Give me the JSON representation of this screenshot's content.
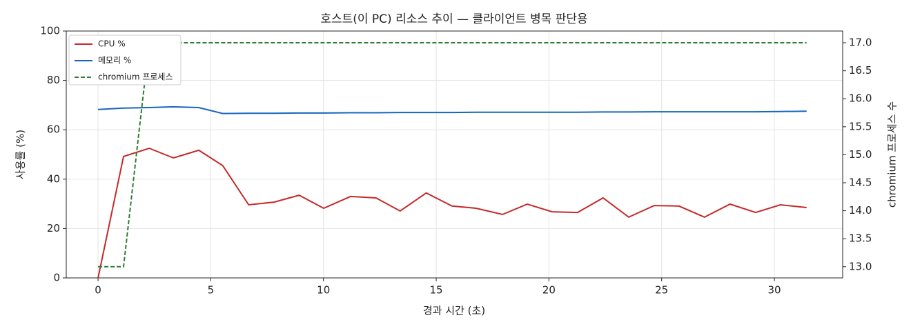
{
  "chart_data": {
    "type": "line",
    "title": "호스트(이 PC) 리소스 추이 — 클라이언트 병목 판단용",
    "x_label": "경과 시간 (초)",
    "y_label": "사용률 (%)",
    "y2_label": "chromium 프로세스 수",
    "x": [
      0,
      1.13,
      2.27,
      3.34,
      4.47,
      5.53,
      6.68,
      7.81,
      8.92,
      10.01,
      11.2,
      12.33,
      13.4,
      14.56,
      15.7,
      16.77,
      17.94,
      19.04,
      20.14,
      21.27,
      22.4,
      23.54,
      24.67,
      25.77,
      26.9,
      28.03,
      29.17,
      30.27,
      31.43
    ],
    "series": [
      {
        "name": "CPU %",
        "color": "#c62828",
        "dash": false,
        "values": [
          0,
          49.2,
          52.5,
          48.6,
          51.7,
          45.5,
          29.6,
          30.7,
          33.5,
          28.2,
          33.0,
          32.4,
          27.1,
          34.4,
          29.1,
          28.2,
          25.7,
          29.9,
          26.8,
          26.5,
          32.4,
          24.6,
          29.3,
          29.1,
          24.6,
          29.9,
          26.5,
          29.6,
          28.5
        ]
      },
      {
        "name": "메모리 %",
        "color": "#1565c0",
        "dash": false,
        "values": [
          68.2,
          68.8,
          69.0,
          69.3,
          69.0,
          66.6,
          66.7,
          66.7,
          66.8,
          66.8,
          66.9,
          66.9,
          67.0,
          67.0,
          67.0,
          67.1,
          67.1,
          67.1,
          67.1,
          67.1,
          67.2,
          67.2,
          67.3,
          67.3,
          67.3,
          67.3,
          67.3,
          67.4,
          67.5
        ]
      },
      {
        "name": "chromium 프로세스",
        "color": "#2e7d32",
        "dash": true,
        "axis": "y2",
        "values": [
          13,
          13,
          17,
          17,
          17,
          17,
          17,
          17,
          17,
          17,
          17,
          17,
          17,
          17,
          17,
          17,
          17,
          17,
          17,
          17,
          17,
          17,
          17,
          17,
          17,
          17,
          17,
          17,
          17
        ]
      }
    ],
    "xlim": [
      -1.41,
      33.03
    ],
    "xticks": [
      0,
      5,
      10,
      15,
      20,
      25,
      30
    ],
    "ylim": [
      0,
      100
    ],
    "yticks": [
      0,
      20,
      40,
      60,
      80,
      100
    ],
    "y2lim": [
      12.8,
      17.21
    ],
    "y2ticks": [
      {
        "value": 13,
        "label": "13.0"
      },
      13.5,
      {
        "value": 14,
        "label": "14.0"
      },
      14.5,
      {
        "value": 15,
        "label": "15.0"
      },
      15.5,
      {
        "value": 16,
        "label": "16.0"
      },
      16.5,
      {
        "value": 17,
        "label": "17.0"
      }
    ],
    "grid": true,
    "legend": "upper-left"
  }
}
